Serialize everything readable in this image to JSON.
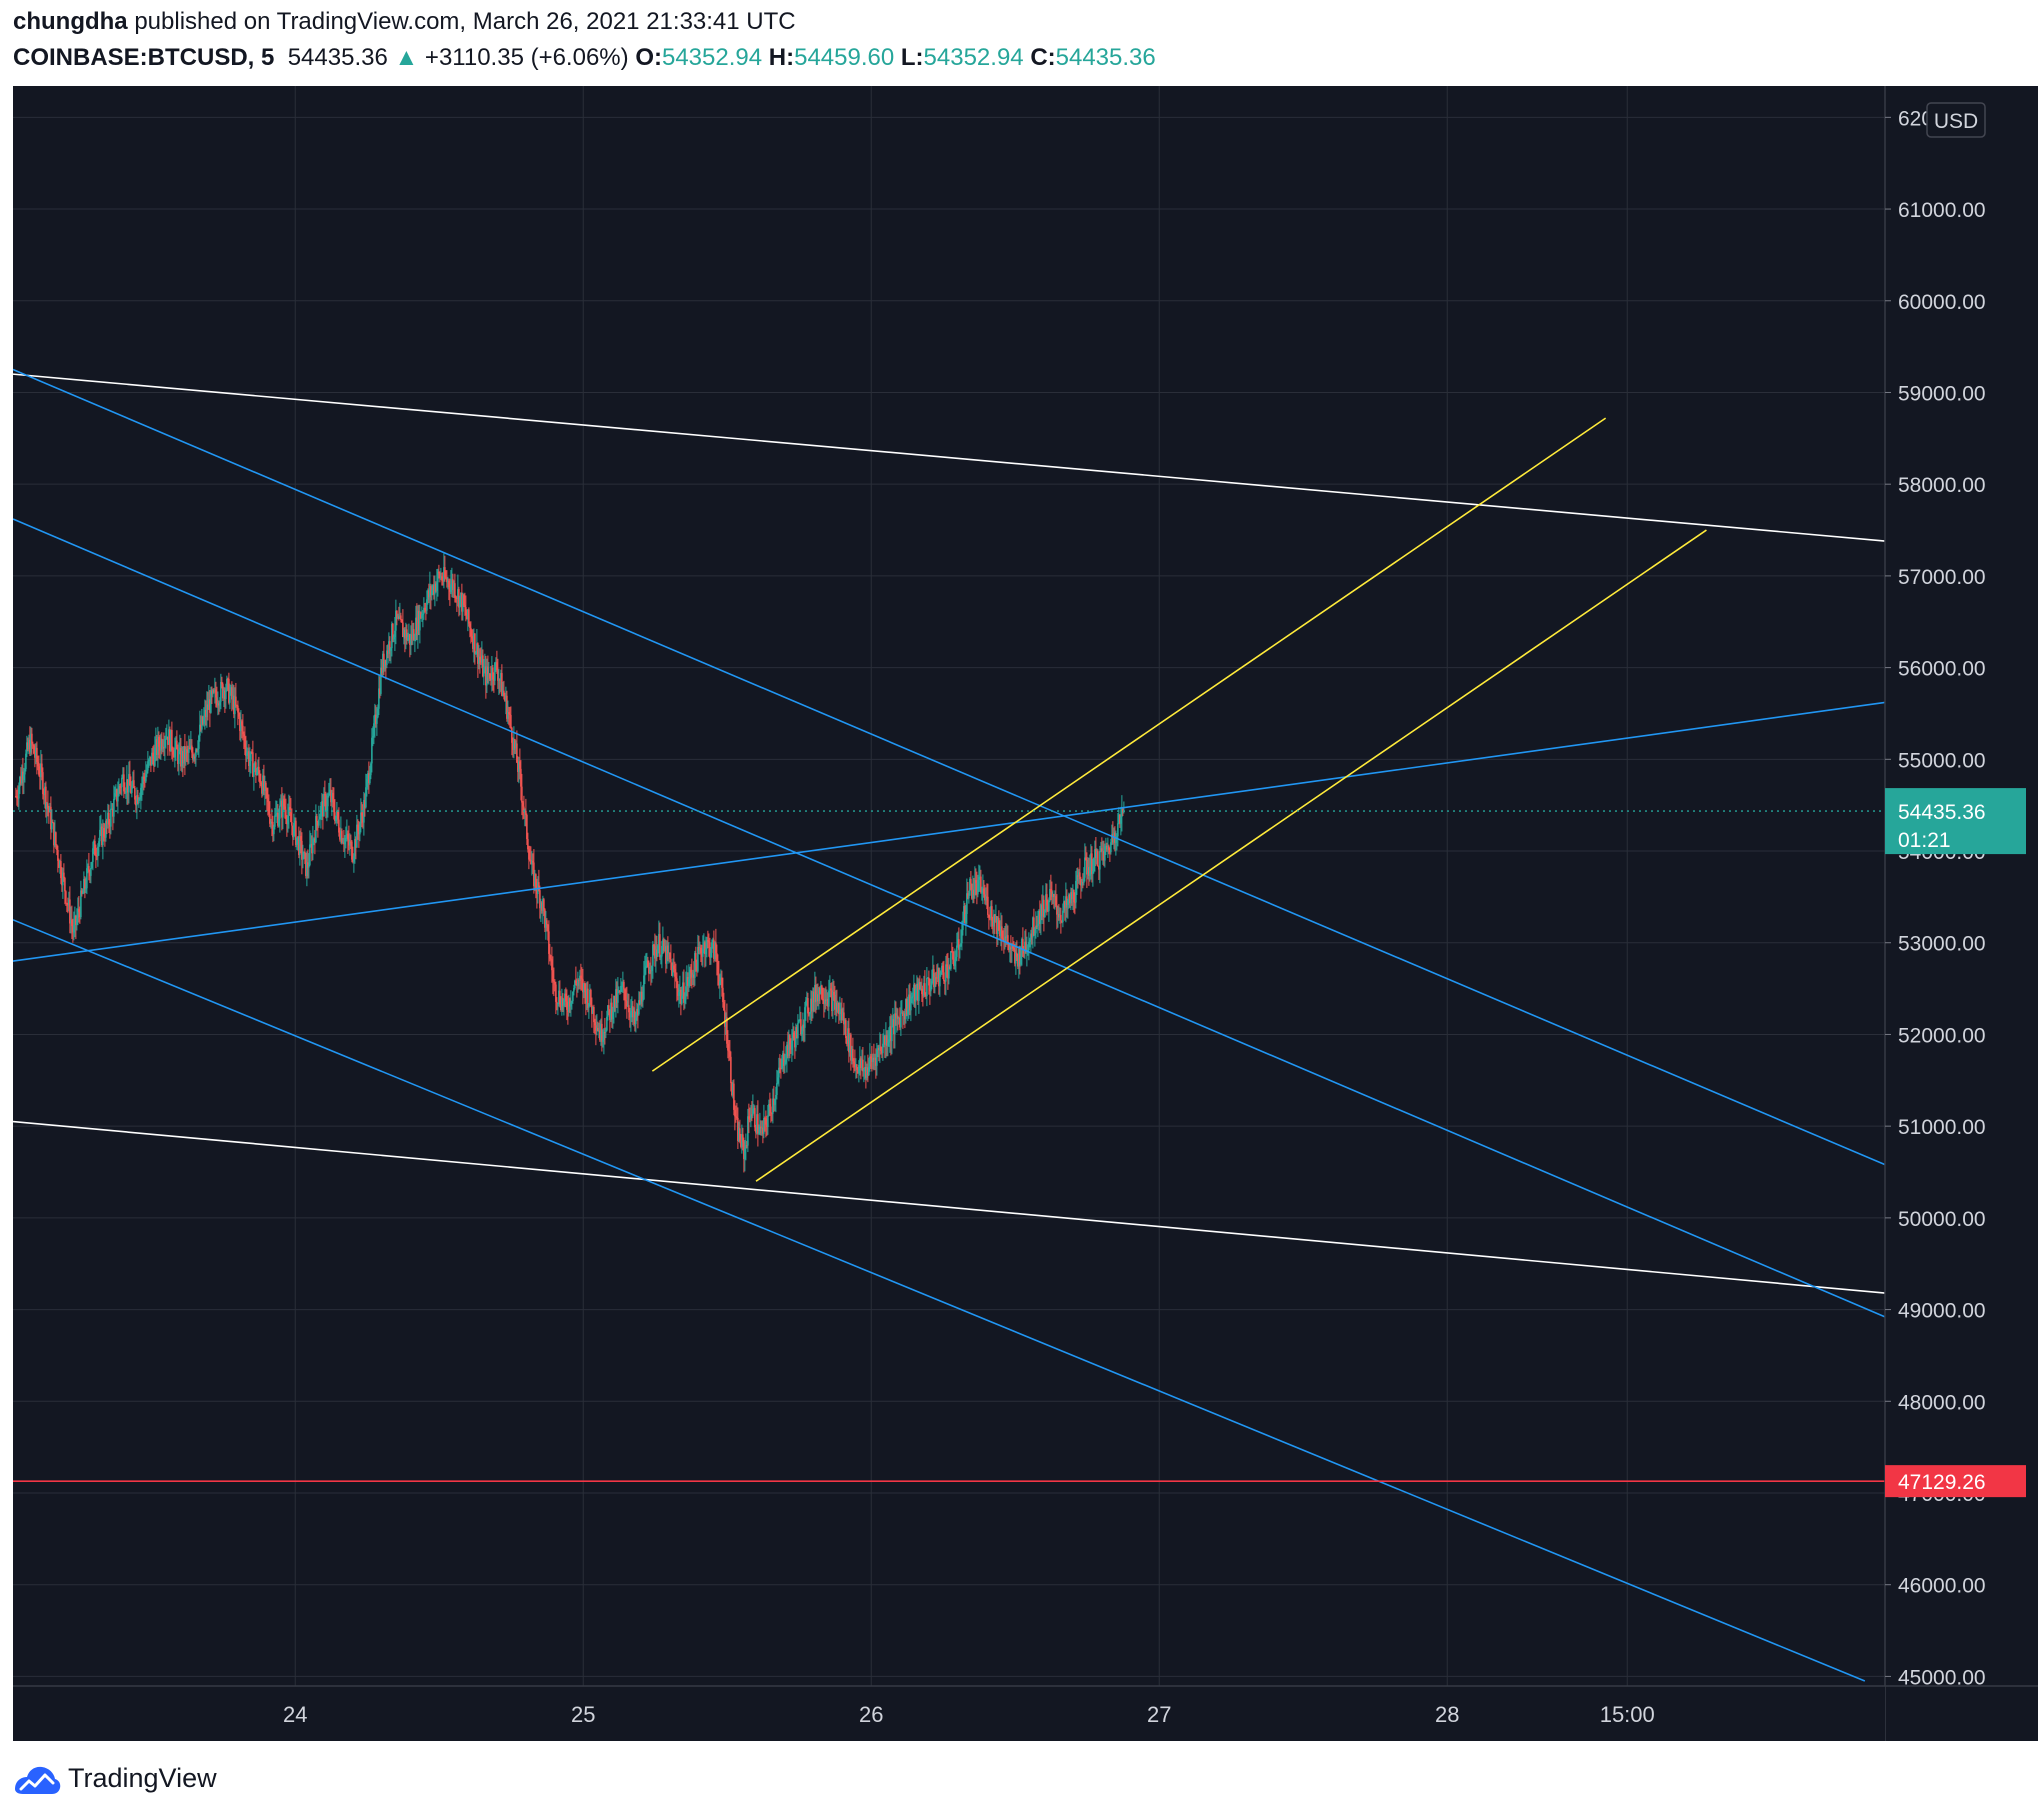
{
  "header": {
    "author": "chungdha",
    "published_text": " published on TradingView.com, March 26, 2021 21:33:41 UTC",
    "symbol": "COINBASE:BTCUSD, 5",
    "last_price": "54435.36",
    "change": "+3110.35 (+6.06%)",
    "open_label": "O:",
    "open_value": "54352.94",
    "high_label": "H:",
    "high_value": "54459.60",
    "low_label": "L:",
    "low_value": "54352.94",
    "close_label": "C:",
    "close_value": "54435.36"
  },
  "footer": {
    "brand": "TradingView"
  },
  "colors": {
    "background": "#131722",
    "grid": "#2a2e39",
    "up_candle": "#26a69a",
    "down_candle": "#ef5350",
    "channel_blue": "#2196f3",
    "channel_white": "#ffffff",
    "channel_yellow": "#ffeb3b",
    "support_red": "#f23645",
    "price_badge": "#26a69a"
  },
  "chart_data": {
    "type": "candlestick",
    "symbol": "COINBASE:BTCUSD",
    "interval": "5",
    "currency": "USD",
    "ylim": [
      44950,
      62200
    ],
    "y_ticks": [
      "45000.00",
      "46000.00",
      "47000.00",
      "48000.00",
      "49000.00",
      "50000.00",
      "51000.00",
      "52000.00",
      "53000.00",
      "54000.00",
      "55000.00",
      "56000.00",
      "57000.00",
      "58000.00",
      "59000.00",
      "60000.00",
      "61000.00",
      "62000.00"
    ],
    "x_ticks": [
      {
        "label": "24",
        "day": 24.0
      },
      {
        "label": "25",
        "day": 25.0
      },
      {
        "label": "26",
        "day": 26.0
      },
      {
        "label": "27",
        "day": 27.0
      },
      {
        "label": "28",
        "day": 28.0
      },
      {
        "label": "15:00",
        "day": 28.625
      }
    ],
    "x_range_day": [
      23.02,
      29.52
    ],
    "last_price": 54435.36,
    "last_price_countdown": "01:21",
    "horizontal_level": {
      "price": 47129.26,
      "label": "47129.26"
    },
    "price_path": [
      [
        23.03,
        54600
      ],
      [
        23.08,
        55200
      ],
      [
        23.12,
        54800
      ],
      [
        23.16,
        54200
      ],
      [
        23.2,
        53600
      ],
      [
        23.23,
        53100
      ],
      [
        23.26,
        53500
      ],
      [
        23.3,
        54000
      ],
      [
        23.35,
        54300
      ],
      [
        23.4,
        54800
      ],
      [
        23.45,
        54600
      ],
      [
        23.5,
        55000
      ],
      [
        23.55,
        55300
      ],
      [
        23.6,
        55000
      ],
      [
        23.65,
        55100
      ],
      [
        23.7,
        55600
      ],
      [
        23.76,
        55800
      ],
      [
        23.8,
        55500
      ],
      [
        23.84,
        55000
      ],
      [
        23.88,
        54800
      ],
      [
        23.92,
        54300
      ],
      [
        23.96,
        54500
      ],
      [
        24.0,
        54200
      ],
      [
        24.04,
        53800
      ],
      [
        24.08,
        54400
      ],
      [
        24.12,
        54600
      ],
      [
        24.16,
        54200
      ],
      [
        24.2,
        54000
      ],
      [
        24.24,
        54500
      ],
      [
        24.27,
        55200
      ],
      [
        24.3,
        56000
      ],
      [
        24.35,
        56500
      ],
      [
        24.4,
        56300
      ],
      [
        24.45,
        56700
      ],
      [
        24.5,
        57000
      ],
      [
        24.55,
        56900
      ],
      [
        24.58,
        56700
      ],
      [
        24.62,
        56300
      ],
      [
        24.66,
        55900
      ],
      [
        24.7,
        56000
      ],
      [
        24.74,
        55500
      ],
      [
        24.78,
        54800
      ],
      [
        24.82,
        53800
      ],
      [
        24.86,
        53400
      ],
      [
        24.9,
        52500
      ],
      [
        24.94,
        52300
      ],
      [
        24.98,
        52600
      ],
      [
        25.02,
        52400
      ],
      [
        25.06,
        52000
      ],
      [
        25.1,
        52300
      ],
      [
        25.14,
        52500
      ],
      [
        25.18,
        52100
      ],
      [
        25.22,
        52700
      ],
      [
        25.26,
        53000
      ],
      [
        25.3,
        52800
      ],
      [
        25.34,
        52400
      ],
      [
        25.38,
        52700
      ],
      [
        25.42,
        53000
      ],
      [
        25.46,
        52900
      ],
      [
        25.5,
        52000
      ],
      [
        25.53,
        51000
      ],
      [
        25.56,
        50700
      ],
      [
        25.58,
        51200
      ],
      [
        25.62,
        50900
      ],
      [
        25.66,
        51300
      ],
      [
        25.7,
        51800
      ],
      [
        25.74,
        52000
      ],
      [
        25.78,
        52300
      ],
      [
        25.82,
        52500
      ],
      [
        25.86,
        52400
      ],
      [
        25.9,
        52200
      ],
      [
        25.94,
        51700
      ],
      [
        25.98,
        51600
      ],
      [
        26.02,
        51800
      ],
      [
        26.06,
        52000
      ],
      [
        26.1,
        52200
      ],
      [
        26.14,
        52400
      ],
      [
        26.18,
        52500
      ],
      [
        26.22,
        52600
      ],
      [
        26.26,
        52700
      ],
      [
        26.3,
        52900
      ],
      [
        26.34,
        53600
      ],
      [
        26.38,
        53600
      ],
      [
        26.42,
        53300
      ],
      [
        26.46,
        53100
      ],
      [
        26.5,
        52800
      ],
      [
        26.54,
        53000
      ],
      [
        26.58,
        53300
      ],
      [
        26.62,
        53500
      ],
      [
        26.66,
        53300
      ],
      [
        26.7,
        53500
      ],
      [
        26.74,
        53800
      ],
      [
        26.78,
        53900
      ],
      [
        26.82,
        54000
      ],
      [
        26.85,
        54250
      ],
      [
        26.88,
        54435
      ]
    ],
    "trendlines": [
      {
        "color": "white",
        "p1": [
          23.02,
          59200
        ],
        "p2": [
          29.52,
          57380
        ]
      },
      {
        "color": "white",
        "p1": [
          23.02,
          51050
        ],
        "p2": [
          29.52,
          49180
        ]
      },
      {
        "color": "blue",
        "p1": [
          23.02,
          59250
        ],
        "p2": [
          29.52,
          50580
        ]
      },
      {
        "color": "blue",
        "p1": [
          23.02,
          57620
        ],
        "p2": [
          29.52,
          48920
        ]
      },
      {
        "color": "blue",
        "p1": [
          23.02,
          53250
        ],
        "p2": [
          29.45,
          44950
        ]
      },
      {
        "color": "blue",
        "p1": [
          23.02,
          52800
        ],
        "p2": [
          29.52,
          55620
        ]
      },
      {
        "color": "yellow",
        "p1": [
          25.24,
          51600
        ],
        "p2": [
          28.55,
          58720
        ]
      },
      {
        "color": "yellow",
        "p1": [
          25.6,
          50400
        ],
        "p2": [
          28.9,
          57500
        ]
      }
    ]
  }
}
